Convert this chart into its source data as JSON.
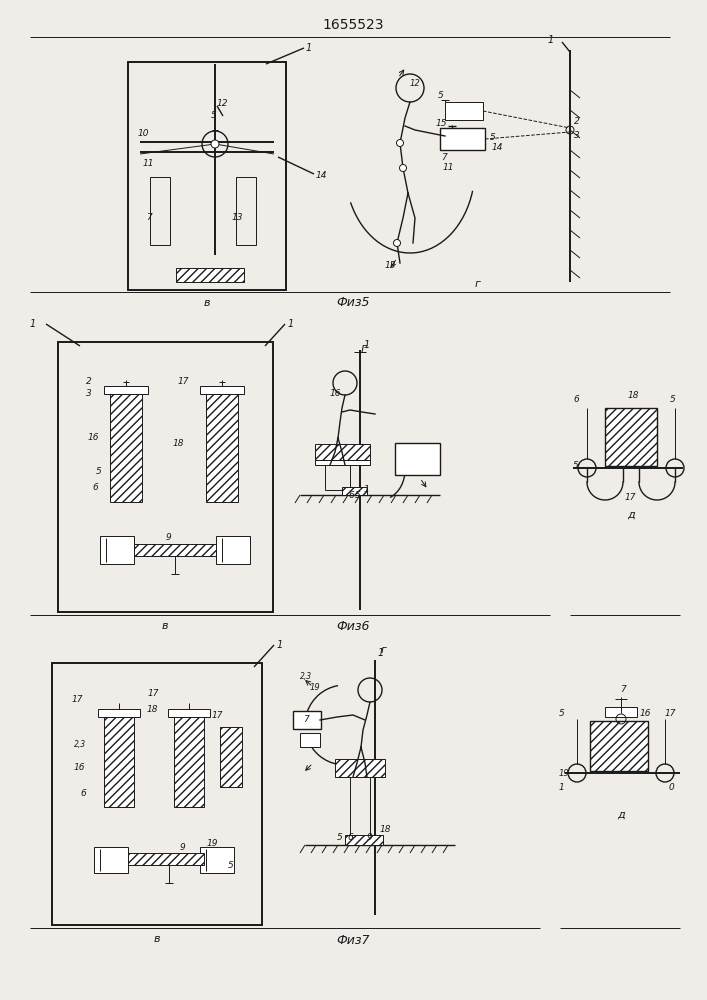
{
  "title": "1655523",
  "bg_color": "#f0ede8",
  "line_color": "#1a1a1a",
  "fig5_label": "Физ5",
  "fig6_label": "Физ6",
  "fig7_label": "Физ7",
  "sub_b": "в",
  "sub_g": "г",
  "sub_d": "д"
}
